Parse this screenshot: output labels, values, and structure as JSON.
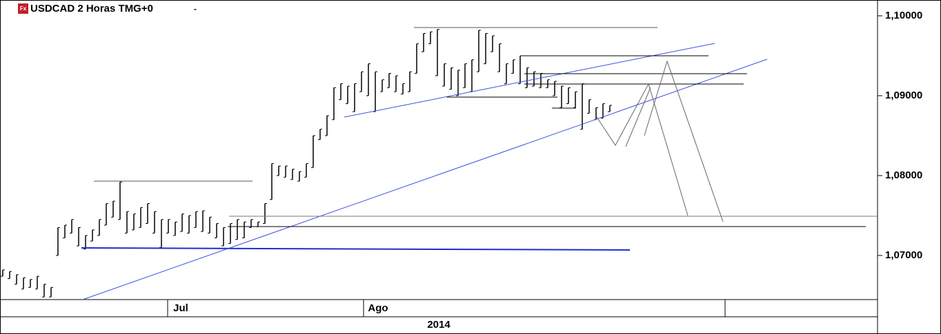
{
  "chart_data": {
    "type": "range_bar",
    "icon_label": "Fx",
    "title": "USDCAD 2 Horas TMG+0",
    "menu_mark": "-",
    "x_labels": [
      "Jul",
      "Ago"
    ],
    "year": "2014",
    "color": "#000000",
    "ylim": [
      1.06448,
      1.10198
    ],
    "yticks": [
      {
        "value": 1.1,
        "label": "1,10000"
      },
      {
        "value": 1.09,
        "label": "1,09000"
      },
      {
        "value": 1.08,
        "label": "1,08000"
      },
      {
        "value": 1.07,
        "label": "1,07000"
      }
    ],
    "high": [
      1.0682,
      1.068,
      1.0676,
      1.0672,
      1.067,
      1.0674,
      1.0664,
      1.066,
      1.0735,
      1.0738,
      1.0745,
      1.0735,
      1.0725,
      1.0732,
      1.0745,
      1.0765,
      1.0768,
      1.0792,
      1.0755,
      1.0752,
      1.076,
      1.0765,
      1.0755,
      1.0745,
      1.0745,
      1.0742,
      1.0752,
      1.075,
      1.0755,
      1.0756,
      1.0748,
      1.074,
      1.0735,
      1.074,
      1.0745,
      1.0742,
      1.0745,
      1.0742,
      1.0765,
      1.0815,
      1.0812,
      1.0812,
      1.0808,
      1.0805,
      1.0815,
      1.085,
      1.0858,
      1.0875,
      1.091,
      1.0915,
      1.0912,
      1.0915,
      1.093,
      1.094,
      1.093,
      1.092,
      1.0928,
      1.0925,
      1.0915,
      1.093,
      1.0965,
      1.0978,
      1.098,
      1.0983,
      1.094,
      1.0935,
      1.0932,
      1.094,
      1.0945,
      1.0982,
      1.0978,
      1.0975,
      1.0965,
      1.094,
      1.0945,
      1.095,
      1.0935,
      1.093,
      1.0928,
      1.092,
      1.0918,
      1.0912,
      1.091,
      1.0905,
      1.0915,
      1.0895,
      1.0885,
      1.089,
      1.0888
    ],
    "low": [
      1.0674,
      1.0671,
      1.0664,
      1.0658,
      1.066,
      1.0658,
      1.0648,
      1.0648,
      1.07,
      1.0722,
      1.0728,
      1.0712,
      1.0708,
      1.0718,
      1.0725,
      1.0738,
      1.0748,
      1.0745,
      1.0728,
      1.0732,
      1.0735,
      1.074,
      1.0728,
      1.071,
      1.0728,
      1.0725,
      1.073,
      1.0728,
      1.0735,
      1.073,
      1.0728,
      1.0722,
      1.0712,
      1.0715,
      1.072,
      1.0722,
      1.0735,
      1.0736,
      1.074,
      1.077,
      1.08,
      1.0798,
      1.0795,
      1.0793,
      1.0798,
      1.081,
      1.0845,
      1.085,
      1.087,
      1.0895,
      1.089,
      1.088,
      1.0905,
      1.09,
      1.088,
      1.0905,
      1.091,
      1.0905,
      1.0902,
      1.0905,
      1.0928,
      1.0955,
      1.0965,
      1.0925,
      1.0912,
      1.0908,
      1.09,
      1.091,
      1.0905,
      1.093,
      1.094,
      1.0955,
      1.093,
      1.0915,
      1.0928,
      1.0915,
      1.091,
      1.0912,
      1.091,
      1.091,
      1.09,
      1.0885,
      1.089,
      1.0885,
      1.0858,
      1.0878,
      1.087,
      1.0872,
      1.088
    ]
  }
}
